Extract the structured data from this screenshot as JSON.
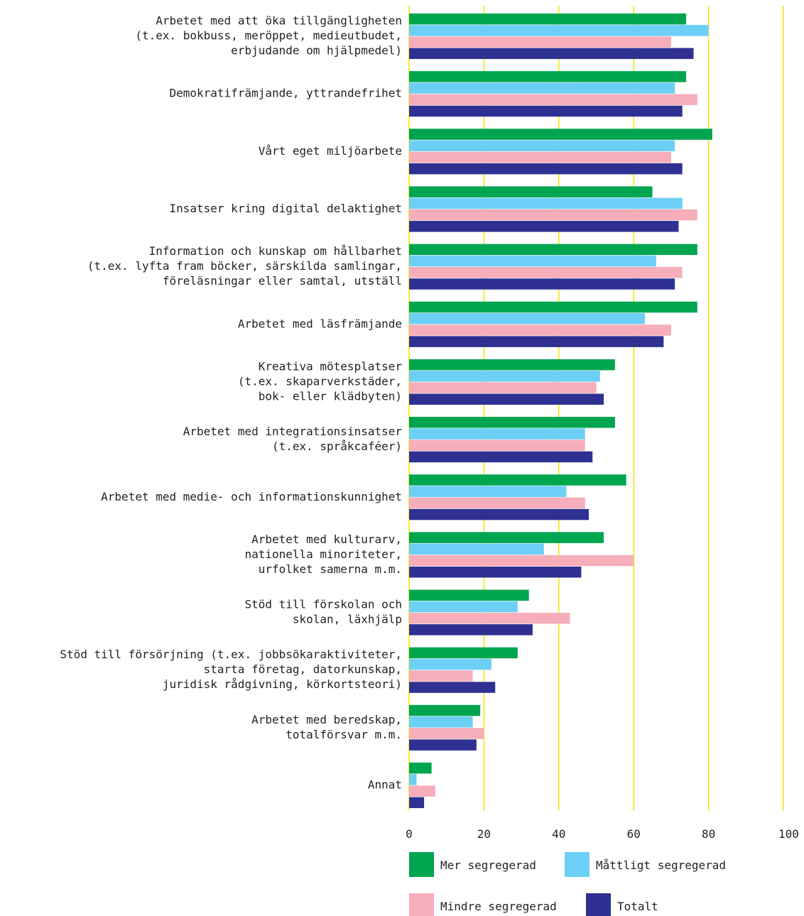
{
  "chart_data": {
    "type": "bar",
    "orientation": "horizontal",
    "categories": [
      [
        "Arbetet med att öka tillgängligheten",
        "(t.ex. bokbuss, meröppet, medieutbudet,",
        "erbjudande om hjälpmedel)"
      ],
      [
        "Demokratifrämjande, yttrandefrihet"
      ],
      [
        "Vårt eget miljöarbete"
      ],
      [
        "Insatser kring digital delaktighet"
      ],
      [
        "Information och kunskap om hållbarhet",
        "(t.ex. lyfta fram böcker, särskilda samlingar,",
        "föreläsningar eller samtal, utställ"
      ],
      [
        "Arbetet med läsfrämjande"
      ],
      [
        "Kreativa mötesplatser",
        "(t.ex. skaparverkstäder,",
        "bok- eller klädbyten)"
      ],
      [
        "Arbetet med integrationsinsatser",
        "(t.ex. språkcaféer)"
      ],
      [
        "Arbetet med medie- och informationskunnighet"
      ],
      [
        "Arbetet med kulturarv,",
        "nationella minoriteter,",
        "urfolket samerna m.m."
      ],
      [
        "Stöd till förskolan och",
        "skolan, läxhjälp"
      ],
      [
        "Stöd till försörjning (t.ex. jobbsökaraktiviteter,",
        "starta företag, datorkunskap,",
        "juridisk rådgivning, körkortsteori)"
      ],
      [
        "Arbetet med beredskap,",
        "totalförsvar m.m."
      ],
      [
        "Annat"
      ]
    ],
    "series": [
      {
        "name": "Mer segregerad",
        "color": "#00a550",
        "values": [
          74,
          74,
          81,
          65,
          77,
          77,
          55,
          55,
          58,
          52,
          32,
          29,
          19,
          6
        ]
      },
      {
        "name": "Måttligt segregerad",
        "color": "#6ccff6",
        "values": [
          80,
          71,
          71,
          73,
          66,
          63,
          51,
          47,
          42,
          36,
          29,
          22,
          17,
          2
        ]
      },
      {
        "name": "Mindre segregerad",
        "color": "#f6aeba",
        "values": [
          70,
          77,
          70,
          77,
          73,
          70,
          50,
          47,
          47,
          60,
          43,
          17,
          20,
          7
        ]
      },
      {
        "name": "Totalt",
        "color": "#2e3192",
        "values": [
          76,
          73,
          73,
          72,
          71,
          68,
          52,
          49,
          48,
          46,
          33,
          23,
          18,
          4
        ]
      }
    ],
    "x_ticks": [
      "0",
      "20",
      "40",
      "60",
      "80",
      "100 %"
    ],
    "xlim": [
      0,
      100
    ],
    "grid": true,
    "grid_color": "#f2e600",
    "legend": {
      "placement": "bottom",
      "items": [
        {
          "label": "Mer segregerad",
          "color": "#00a550"
        },
        {
          "label": "Måttligt segregerad",
          "color": "#6ccff6"
        },
        {
          "label": "Mindre segregerad",
          "color": "#f6aeba"
        },
        {
          "label": "Totalt",
          "color": "#2e3192"
        }
      ]
    }
  }
}
